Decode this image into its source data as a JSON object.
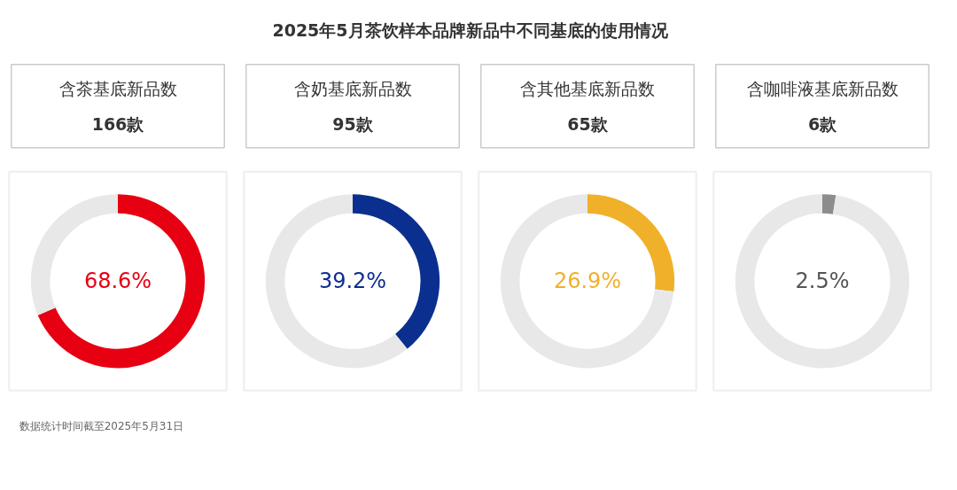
{
  "chart_data": [
    {
      "type": "other",
      "title": "2025年5月茶饮样本品牌新品中不同基底的使用情况",
      "annotations": [
        "数据统计时间截至2025年5月31日"
      ]
    },
    {
      "type": "donut",
      "title": "含茶基底新品数",
      "subtitle": "166款",
      "categories": [
        null,
        null
      ],
      "values": [
        68.6,
        31.4
      ],
      "colors": [
        "#e60012",
        "#e8e8e8"
      ],
      "annotations": [
        "68.6%"
      ]
    },
    {
      "type": "donut",
      "title": "含奶基底新品数",
      "subtitle": "95款",
      "categories": [
        null,
        null
      ],
      "values": [
        39.2,
        60.8
      ],
      "colors": [
        "#0b2f8f",
        "#e8e8e8"
      ],
      "annotations": [
        "39.2%"
      ]
    },
    {
      "type": "donut",
      "title": "含其他基底新品数",
      "subtitle": "65款",
      "categories": [
        null,
        null
      ],
      "values": [
        26.9,
        73.1
      ],
      "colors": [
        "#f0b02a",
        "#e8e8e8"
      ],
      "annotations": [
        "26.9%"
      ]
    },
    {
      "type": "donut",
      "title": "含咖啡液基底新品数",
      "subtitle": "6款",
      "categories": [
        null,
        null
      ],
      "values": [
        2.5,
        97.5
      ],
      "colors": [
        "#8c8c8c",
        "#e8e8e8"
      ],
      "annotations": [
        "2.5%"
      ]
    }
  ]
}
